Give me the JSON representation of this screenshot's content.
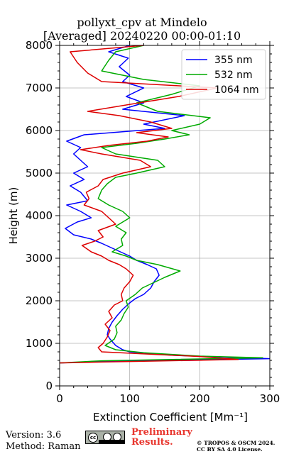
{
  "chart_data": {
    "type": "line",
    "title": "pollyxt_cpv at Mindelo",
    "subtitle": "[Averaged] 20240220 00:00-01:10",
    "xlabel": "Extinction Coefficient [Mm⁻¹]",
    "ylabel": "Height (m)",
    "xlim": [
      0,
      300
    ],
    "ylim": [
      0,
      8000
    ],
    "xticks": [
      "0",
      "100",
      "200",
      "300"
    ],
    "yticks": [
      "0",
      "1000",
      "2000",
      "3000",
      "4000",
      "5000",
      "6000",
      "7000",
      "8000"
    ],
    "grid": true,
    "legend_position": "top-right",
    "series": [
      {
        "name": "355 nm",
        "color": "#0000ff",
        "points": [
          [
            0,
            540
          ],
          [
            70,
            580
          ],
          [
            300,
            640
          ],
          [
            160,
            720
          ],
          [
            100,
            800
          ],
          [
            90,
            850
          ],
          [
            80,
            950
          ],
          [
            72,
            1100
          ],
          [
            68,
            1200
          ],
          [
            70,
            1350
          ],
          [
            75,
            1500
          ],
          [
            82,
            1650
          ],
          [
            90,
            1800
          ],
          [
            100,
            1950
          ],
          [
            108,
            2050
          ],
          [
            120,
            2150
          ],
          [
            130,
            2300
          ],
          [
            135,
            2450
          ],
          [
            142,
            2600
          ],
          [
            138,
            2750
          ],
          [
            125,
            2850
          ],
          [
            110,
            2950
          ],
          [
            100,
            3050
          ],
          [
            80,
            3200
          ],
          [
            60,
            3350
          ],
          [
            45,
            3450
          ],
          [
            20,
            3550
          ],
          [
            8,
            3700
          ],
          [
            25,
            3850
          ],
          [
            45,
            3950
          ],
          [
            30,
            4100
          ],
          [
            10,
            4250
          ],
          [
            40,
            4350
          ],
          [
            30,
            4550
          ],
          [
            15,
            4700
          ],
          [
            35,
            4850
          ],
          [
            20,
            5000
          ],
          [
            40,
            5150
          ],
          [
            30,
            5300
          ],
          [
            20,
            5450
          ],
          [
            30,
            5600
          ],
          [
            10,
            5750
          ],
          [
            35,
            5900
          ],
          [
            150,
            6050
          ],
          [
            120,
            6150
          ],
          [
            178,
            6350
          ],
          [
            90,
            6500
          ],
          [
            120,
            6650
          ],
          [
            95,
            6800
          ],
          [
            120,
            7000
          ],
          [
            90,
            7150
          ],
          [
            100,
            7300
          ],
          [
            85,
            7500
          ],
          [
            98,
            7700
          ],
          [
            70,
            7850
          ],
          [
            100,
            8000
          ]
        ]
      },
      {
        "name": "532 nm",
        "color": "#00aa00",
        "points": [
          [
            0,
            540
          ],
          [
            60,
            590
          ],
          [
            290,
            660
          ],
          [
            200,
            700
          ],
          [
            120,
            780
          ],
          [
            80,
            850
          ],
          [
            65,
            950
          ],
          [
            78,
            1100
          ],
          [
            82,
            1250
          ],
          [
            80,
            1400
          ],
          [
            88,
            1550
          ],
          [
            92,
            1700
          ],
          [
            98,
            1850
          ],
          [
            95,
            2000
          ],
          [
            108,
            2150
          ],
          [
            118,
            2300
          ],
          [
            150,
            2550
          ],
          [
            172,
            2700
          ],
          [
            140,
            2850
          ],
          [
            110,
            2950
          ],
          [
            95,
            3050
          ],
          [
            75,
            3150
          ],
          [
            90,
            3300
          ],
          [
            88,
            3450
          ],
          [
            95,
            3600
          ],
          [
            80,
            3750
          ],
          [
            100,
            3950
          ],
          [
            90,
            4100
          ],
          [
            70,
            4250
          ],
          [
            55,
            4400
          ],
          [
            60,
            4600
          ],
          [
            68,
            4750
          ],
          [
            80,
            4900
          ],
          [
            110,
            5000
          ],
          [
            150,
            5150
          ],
          [
            140,
            5300
          ],
          [
            80,
            5450
          ],
          [
            60,
            5600
          ],
          [
            110,
            5700
          ],
          [
            150,
            5800
          ],
          [
            185,
            5900
          ],
          [
            160,
            6000
          ],
          [
            200,
            6150
          ],
          [
            215,
            6300
          ],
          [
            140,
            6450
          ],
          [
            110,
            6650
          ],
          [
            160,
            6850
          ],
          [
            200,
            7050
          ],
          [
            120,
            7200
          ],
          [
            60,
            7400
          ],
          [
            70,
            7650
          ],
          [
            80,
            7850
          ],
          [
            120,
            8000
          ]
        ]
      },
      {
        "name": "1064 nm",
        "color": "#dd0000",
        "points": [
          [
            0,
            540
          ],
          [
            60,
            560
          ],
          [
            255,
            620
          ],
          [
            200,
            690
          ],
          [
            110,
            760
          ],
          [
            60,
            800
          ],
          [
            55,
            900
          ],
          [
            62,
            1000
          ],
          [
            68,
            1150
          ],
          [
            72,
            1300
          ],
          [
            65,
            1450
          ],
          [
            75,
            1600
          ],
          [
            70,
            1750
          ],
          [
            78,
            1900
          ],
          [
            90,
            2000
          ],
          [
            88,
            2150
          ],
          [
            92,
            2300
          ],
          [
            100,
            2450
          ],
          [
            105,
            2600
          ],
          [
            95,
            2750
          ],
          [
            85,
            2850
          ],
          [
            70,
            2950
          ],
          [
            60,
            3050
          ],
          [
            45,
            3150
          ],
          [
            32,
            3300
          ],
          [
            50,
            3400
          ],
          [
            62,
            3500
          ],
          [
            55,
            3650
          ],
          [
            80,
            3800
          ],
          [
            70,
            3950
          ],
          [
            60,
            4100
          ],
          [
            35,
            4250
          ],
          [
            42,
            4400
          ],
          [
            38,
            4550
          ],
          [
            55,
            4700
          ],
          [
            62,
            4850
          ],
          [
            90,
            5000
          ],
          [
            130,
            5150
          ],
          [
            115,
            5300
          ],
          [
            60,
            5450
          ],
          [
            30,
            5550
          ],
          [
            70,
            5650
          ],
          [
            125,
            5750
          ],
          [
            155,
            5850
          ],
          [
            110,
            5950
          ],
          [
            160,
            6050
          ],
          [
            130,
            6200
          ],
          [
            85,
            6350
          ],
          [
            40,
            6450
          ],
          [
            95,
            6600
          ],
          [
            170,
            6800
          ],
          [
            225,
            7000
          ],
          [
            60,
            7150
          ],
          [
            40,
            7350
          ],
          [
            25,
            7600
          ],
          [
            15,
            7850
          ],
          [
            120,
            8000
          ]
        ]
      }
    ]
  },
  "footer": {
    "version": "Version: 3.6",
    "method": "Method: Raman",
    "preliminary_line1": "Preliminary",
    "preliminary_line2": "Results.",
    "copyright_line1": "© TROPOS & OSCM 2024.",
    "copyright_line2": "CC BY SA 4.0 License.",
    "license_icon": "cc-by-sa-badge"
  }
}
